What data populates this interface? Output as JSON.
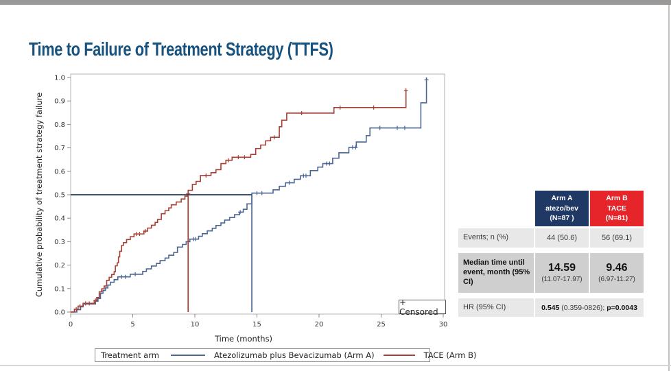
{
  "page": {
    "title": "Time to Failure of Treatment Strategy (TTFS)"
  },
  "chart_data": {
    "type": "line",
    "subtype": "kaplan-meier-step",
    "title": "Time to Failure of Treatment Strategy (TTFS)",
    "xlabel": "Time (months)",
    "ylabel": "Cumulative probability of treatment strategy failure",
    "xlim": [
      0,
      30
    ],
    "ylim": [
      0.0,
      1.0
    ],
    "xticks": [
      0,
      5,
      10,
      15,
      20,
      25,
      30
    ],
    "yticks": [
      0.0,
      0.1,
      0.2,
      0.3,
      0.4,
      0.5,
      0.6,
      0.7,
      0.8,
      0.9,
      1.0
    ],
    "grid": false,
    "censored_label": "+ Censored",
    "legend": {
      "title": "Treatment arm",
      "position": "bottom",
      "entries": [
        {
          "label": "Atezolizumab plus Bevacizumab (Arm A)",
          "color": "#4b6693"
        },
        {
          "label": "TACE (Arm B)",
          "color": "#a63e33"
        }
      ]
    },
    "medians": {
      "arm_a_months": 14.59,
      "arm_b_months": 9.46
    },
    "series": [
      {
        "name": "Atezolizumab plus Bevacizumab (Arm A)",
        "color": "#4b6693",
        "steps": [
          [
            0,
            0
          ],
          [
            0.5,
            0.01
          ],
          [
            0.8,
            0.022
          ],
          [
            1.0,
            0.034
          ],
          [
            2.0,
            0.046
          ],
          [
            2.2,
            0.058
          ],
          [
            2.4,
            0.08
          ],
          [
            2.6,
            0.092
          ],
          [
            2.8,
            0.103
          ],
          [
            3.0,
            0.115
          ],
          [
            3.2,
            0.127
          ],
          [
            3.5,
            0.138
          ],
          [
            3.8,
            0.15
          ],
          [
            4.8,
            0.161
          ],
          [
            5.8,
            0.173
          ],
          [
            6.1,
            0.184
          ],
          [
            6.5,
            0.196
          ],
          [
            6.9,
            0.207
          ],
          [
            7.2,
            0.219
          ],
          [
            7.6,
            0.23
          ],
          [
            7.9,
            0.242
          ],
          [
            8.3,
            0.254
          ],
          [
            8.6,
            0.277
          ],
          [
            9.0,
            0.288
          ],
          [
            9.3,
            0.3
          ],
          [
            9.6,
            0.311
          ],
          [
            10.3,
            0.323
          ],
          [
            10.6,
            0.334
          ],
          [
            11.0,
            0.346
          ],
          [
            11.4,
            0.357
          ],
          [
            11.7,
            0.369
          ],
          [
            12.1,
            0.38
          ],
          [
            12.4,
            0.392
          ],
          [
            12.8,
            0.403
          ],
          [
            13.2,
            0.415
          ],
          [
            13.6,
            0.426
          ],
          [
            13.9,
            0.438
          ],
          [
            14.2,
            0.461
          ],
          [
            14.59,
            0.507
          ],
          [
            16.3,
            0.521
          ],
          [
            16.8,
            0.536
          ],
          [
            17.3,
            0.551
          ],
          [
            18.0,
            0.566
          ],
          [
            18.5,
            0.581
          ],
          [
            19.3,
            0.603
          ],
          [
            19.9,
            0.618
          ],
          [
            20.3,
            0.633
          ],
          [
            21.1,
            0.656
          ],
          [
            21.6,
            0.679
          ],
          [
            22.4,
            0.702
          ],
          [
            23.0,
            0.725
          ],
          [
            23.8,
            0.752
          ],
          [
            24.1,
            0.785
          ],
          [
            28.2,
            0.892
          ],
          [
            28.65,
            1.0
          ]
        ],
        "censors": [
          [
            4.1,
            0.15
          ],
          [
            4.4,
            0.15
          ],
          [
            5.2,
            0.161
          ],
          [
            9.9,
            0.311
          ],
          [
            10.05,
            0.311
          ],
          [
            13.65,
            0.426
          ],
          [
            15.0,
            0.507
          ],
          [
            15.4,
            0.507
          ],
          [
            17.6,
            0.551
          ],
          [
            18.75,
            0.581
          ],
          [
            18.95,
            0.581
          ],
          [
            20.6,
            0.633
          ],
          [
            20.85,
            0.633
          ],
          [
            22.7,
            0.702
          ],
          [
            22.95,
            0.702
          ],
          [
            24.9,
            0.785
          ],
          [
            26.3,
            0.785
          ],
          [
            26.9,
            0.785
          ],
          [
            28.65,
            0.99
          ]
        ]
      },
      {
        "name": "TACE (Arm B)",
        "color": "#a63e33",
        "steps": [
          [
            0,
            0
          ],
          [
            0.3,
            0.012
          ],
          [
            0.6,
            0.025
          ],
          [
            1.0,
            0.037
          ],
          [
            1.9,
            0.049
          ],
          [
            2.1,
            0.062
          ],
          [
            2.3,
            0.086
          ],
          [
            2.5,
            0.099
          ],
          [
            2.7,
            0.111
          ],
          [
            2.9,
            0.135
          ],
          [
            3.1,
            0.148
          ],
          [
            3.3,
            0.16
          ],
          [
            3.5,
            0.172
          ],
          [
            3.6,
            0.197
          ],
          [
            3.75,
            0.21
          ],
          [
            3.85,
            0.235
          ],
          [
            3.95,
            0.259
          ],
          [
            4.1,
            0.284
          ],
          [
            4.25,
            0.296
          ],
          [
            4.5,
            0.309
          ],
          [
            4.8,
            0.321
          ],
          [
            5.1,
            0.333
          ],
          [
            5.9,
            0.345
          ],
          [
            6.2,
            0.358
          ],
          [
            6.5,
            0.37
          ],
          [
            6.8,
            0.382
          ],
          [
            7.0,
            0.395
          ],
          [
            7.3,
            0.419
          ],
          [
            7.6,
            0.432
          ],
          [
            7.9,
            0.444
          ],
          [
            8.1,
            0.457
          ],
          [
            8.5,
            0.469
          ],
          [
            8.9,
            0.482
          ],
          [
            9.2,
            0.494
          ],
          [
            9.46,
            0.519
          ],
          [
            9.8,
            0.544
          ],
          [
            10.1,
            0.557
          ],
          [
            10.45,
            0.582
          ],
          [
            11.3,
            0.594
          ],
          [
            11.7,
            0.607
          ],
          [
            12.1,
            0.633
          ],
          [
            12.5,
            0.647
          ],
          [
            13.0,
            0.66
          ],
          [
            14.5,
            0.672
          ],
          [
            14.9,
            0.697
          ],
          [
            15.3,
            0.712
          ],
          [
            15.7,
            0.73
          ],
          [
            16.1,
            0.745
          ],
          [
            16.8,
            0.79
          ],
          [
            17.0,
            0.818
          ],
          [
            17.4,
            0.848
          ],
          [
            21.2,
            0.872
          ],
          [
            27.0,
            0.948
          ]
        ],
        "censors": [
          [
            0.45,
            0.012
          ],
          [
            0.75,
            0.025
          ],
          [
            1.2,
            0.037
          ],
          [
            1.5,
            0.037
          ],
          [
            2.0,
            0.049
          ],
          [
            5.3,
            0.333
          ],
          [
            5.55,
            0.333
          ],
          [
            6.0,
            0.345
          ],
          [
            9.46,
            0.505
          ],
          [
            10.9,
            0.582
          ],
          [
            12.7,
            0.647
          ],
          [
            13.5,
            0.66
          ],
          [
            14.0,
            0.66
          ],
          [
            16.4,
            0.745
          ],
          [
            18.6,
            0.848
          ],
          [
            21.7,
            0.872
          ],
          [
            24.4,
            0.872
          ],
          [
            27.0,
            0.945
          ]
        ]
      }
    ],
    "reference_lines": [
      {
        "type": "h",
        "p": 0.5,
        "t1": 0,
        "t2": 14.59,
        "color": "#1f3a5f"
      },
      {
        "type": "v",
        "t": 9.46,
        "p1": 0,
        "p2": 0.5,
        "color": "#a63e33"
      },
      {
        "type": "v",
        "t": 14.59,
        "p1": 0,
        "p2": 0.5,
        "color": "#4b6693"
      }
    ]
  },
  "table": {
    "header": {
      "arm_a": {
        "line1": "Arm A",
        "line2": "atezo/bev",
        "line3": "(N=87 )",
        "color": "#203864"
      },
      "arm_b": {
        "line1": "Arm B",
        "line2": "TACE",
        "line3": "(N=81)",
        "color": "#e6252a"
      }
    },
    "rows": {
      "events": {
        "label": "Events; n (%)",
        "arm_a": "44 (50.6)",
        "arm_b": "56 (69.1)"
      },
      "median": {
        "label": "Median time until event, month (95% CI)",
        "arm_a_value": "14.59",
        "arm_a_ci": "(11.07-17.97)",
        "arm_b_value": "9.46",
        "arm_b_ci": "(6.97-11.27)"
      },
      "hr": {
        "label": "HR (95% CI)",
        "v1": "0.545",
        "v2": " (0.359-0826); ",
        "v3": "p=0.0043"
      }
    }
  }
}
